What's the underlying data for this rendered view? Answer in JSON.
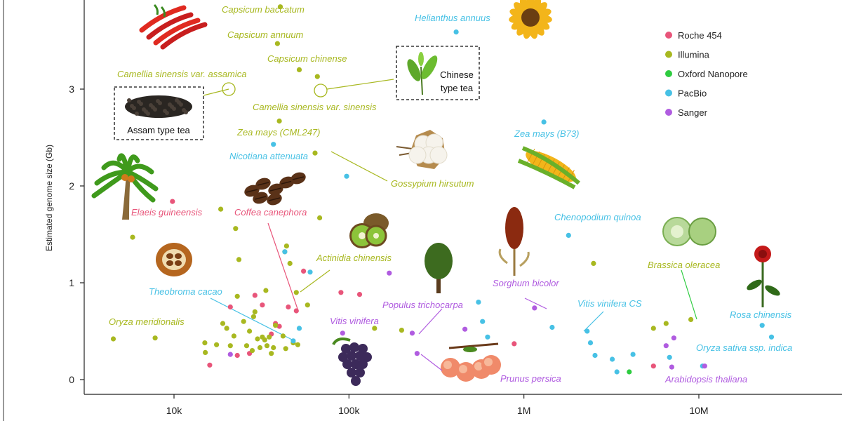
{
  "chart_data": {
    "type": "scatter",
    "title": "",
    "xlabel": "",
    "ylabel": "Estimated genome size (Gb)",
    "x_scale": "log",
    "xlim": [
      3000,
      40000000
    ],
    "ylim": [
      -0.2,
      3.9
    ],
    "x_ticks": [
      {
        "value": 10000,
        "label": "10k"
      },
      {
        "value": 100000,
        "label": "100k"
      },
      {
        "value": 1000000,
        "label": "1M"
      },
      {
        "value": 10000000,
        "label": "10M"
      }
    ],
    "y_ticks": [
      {
        "value": 0,
        "label": "0"
      },
      {
        "value": 1,
        "label": "1"
      },
      {
        "value": 2,
        "label": "2"
      },
      {
        "value": 3,
        "label": "3"
      }
    ],
    "legend_position": "top-right",
    "series": [
      {
        "name": "Roche 454",
        "color": "#e8557a",
        "points": [
          [
            9800,
            1.84
          ],
          [
            16000,
            0.15
          ],
          [
            21000,
            0.75
          ],
          [
            23000,
            0.25
          ],
          [
            27000,
            0.27
          ],
          [
            29000,
            0.87
          ],
          [
            32000,
            0.77
          ],
          [
            36000,
            0.47
          ],
          [
            38000,
            0.58
          ],
          [
            40000,
            0.55
          ],
          [
            45000,
            0.75
          ],
          [
            50000,
            0.71
          ],
          [
            55000,
            1.12
          ],
          [
            90000,
            0.9
          ],
          [
            115000,
            0.88
          ],
          [
            880000,
            0.37
          ],
          [
            5500000,
            0.14
          ]
        ]
      },
      {
        "name": "Illumina",
        "color": "#a8b820",
        "points": [
          [
            4500,
            0.42
          ],
          [
            5800,
            1.47
          ],
          [
            7800,
            0.43
          ],
          [
            15000,
            0.38
          ],
          [
            15100,
            0.28
          ],
          [
            17500,
            0.36
          ],
          [
            18500,
            1.76
          ],
          [
            19000,
            0.58
          ],
          [
            20000,
            0.53
          ],
          [
            21000,
            0.35
          ],
          [
            22000,
            0.45
          ],
          [
            23000,
            0.86
          ],
          [
            23500,
            1.24
          ],
          [
            22500,
            1.56
          ],
          [
            25000,
            0.6
          ],
          [
            26000,
            0.35
          ],
          [
            27000,
            0.5
          ],
          [
            28000,
            0.3
          ],
          [
            28500,
            0.65
          ],
          [
            29000,
            0.7
          ],
          [
            30000,
            0.42
          ],
          [
            31000,
            0.33
          ],
          [
            32000,
            0.44
          ],
          [
            33000,
            0.41
          ],
          [
            33500,
            0.92
          ],
          [
            34000,
            0.35
          ],
          [
            35000,
            0.44
          ],
          [
            36000,
            0.27
          ],
          [
            37000,
            0.33
          ],
          [
            38000,
            0.56
          ],
          [
            39000,
            3.47
          ],
          [
            40000,
            2.67
          ],
          [
            40500,
            3.85
          ],
          [
            42000,
            0.45
          ],
          [
            43000,
            1.32
          ],
          [
            43500,
            0.32
          ],
          [
            44000,
            1.38
          ],
          [
            46000,
            1.2
          ],
          [
            48000,
            0.38
          ],
          [
            50000,
            0.9
          ],
          [
            51000,
            0.36
          ],
          [
            52000,
            3.2
          ],
          [
            58000,
            0.77
          ],
          [
            64000,
            2.34
          ],
          [
            66000,
            3.13
          ],
          [
            68000,
            1.67
          ],
          [
            140000,
            0.53
          ],
          [
            200000,
            0.51
          ],
          [
            2500000,
            1.2
          ],
          [
            5500000,
            0.53
          ],
          [
            6500000,
            0.58
          ],
          [
            9000000,
            0.62
          ]
        ]
      },
      {
        "name": "Oxford Nanopore",
        "color": "#2ecc40",
        "points": [
          [
            4000000,
            0.08
          ]
        ]
      },
      {
        "name": "PacBio",
        "color": "#47c1e5",
        "points": [
          [
            37000,
            2.43
          ],
          [
            43000,
            1.32
          ],
          [
            48000,
            0.4
          ],
          [
            52000,
            0.53
          ],
          [
            60000,
            1.11
          ],
          [
            97000,
            2.1
          ],
          [
            550000,
            0.8
          ],
          [
            580000,
            0.6
          ],
          [
            620000,
            0.44
          ],
          [
            410000,
            3.59
          ],
          [
            1300000,
            2.66
          ],
          [
            1450000,
            0.54
          ],
          [
            1800000,
            1.49
          ],
          [
            2300000,
            0.5
          ],
          [
            2400000,
            0.38
          ],
          [
            2550000,
            0.25
          ],
          [
            3200000,
            0.21
          ],
          [
            3400000,
            0.08
          ],
          [
            4200000,
            0.26
          ],
          [
            6800000,
            0.23
          ],
          [
            10500000,
            0.14
          ],
          [
            23000000,
            0.56
          ],
          [
            26000000,
            0.44
          ]
        ]
      },
      {
        "name": "Sanger",
        "color": "#b05ce0",
        "points": [
          [
            21000,
            0.26
          ],
          [
            92000,
            0.48
          ],
          [
            170000,
            1.1
          ],
          [
            230000,
            0.48
          ],
          [
            245000,
            0.27
          ],
          [
            460000,
            0.52
          ],
          [
            1150000,
            0.74
          ],
          [
            6500000,
            0.35
          ],
          [
            7200000,
            0.43
          ],
          [
            7000000,
            0.13
          ],
          [
            10800000,
            0.14
          ]
        ]
      }
    ],
    "annotations": [
      {
        "text": "Capsicum baccatum",
        "color": "#a8b820"
      },
      {
        "text": "Capsicum annuum",
        "color": "#a8b820"
      },
      {
        "text": "Capsicum chinense",
        "color": "#a8b820"
      },
      {
        "text": "Camellia sinensis var. assamica",
        "color": "#a8b820"
      },
      {
        "text": "Camellia sinensis var. sinensis",
        "color": "#a8b820"
      },
      {
        "text": "Zea mays (CML247)",
        "color": "#a8b820"
      },
      {
        "text": "Nicotiana attenuata",
        "color": "#47c1e5"
      },
      {
        "text": "Gossypium hirsutum",
        "color": "#a8b820"
      },
      {
        "text": "Helianthus annuus",
        "color": "#47c1e5"
      },
      {
        "text": "Zea mays (B73)",
        "color": "#47c1e5"
      },
      {
        "text": "Elaeis guineensis",
        "color": "#e8557a"
      },
      {
        "text": "Coffea canephora",
        "color": "#e8557a"
      },
      {
        "text": "Actinidia chinensis",
        "color": "#a8b820"
      },
      {
        "text": "Chenopodium quinoa",
        "color": "#47c1e5"
      },
      {
        "text": "Brassica oleracea",
        "color": "#a8b820"
      },
      {
        "text": "Theobroma cacao",
        "color": "#47c1e5"
      },
      {
        "text": "Oryza meridionalis",
        "color": "#a8b820"
      },
      {
        "text": "Vitis vinifera",
        "color": "#b05ce0"
      },
      {
        "text": "Populus trichocarpa",
        "color": "#b05ce0"
      },
      {
        "text": "Sorghum bicolor",
        "color": "#b05ce0"
      },
      {
        "text": "Vitis vinifera CS",
        "color": "#47c1e5"
      },
      {
        "text": "Rosa chinensis",
        "color": "#47c1e5"
      },
      {
        "text": "Oryza sativa ssp. indica",
        "color": "#47c1e5"
      },
      {
        "text": "Prunus persica",
        "color": "#b05ce0"
      },
      {
        "text": "Arabidopsis thaliana",
        "color": "#b05ce0"
      }
    ],
    "boxed_labels": [
      {
        "text": "Assam type tea",
        "icon": "black-tea-leaves-icon"
      },
      {
        "text": "Chinese type tea",
        "icon": "green-tea-sprig-icon"
      }
    ],
    "illustrations": [
      "red-chili-peppers-icon",
      "sunflower-icon",
      "palm-tree-icon",
      "coffee-beans-icon",
      "cotton-boll-icon",
      "corn-cob-icon",
      "kiwi-fruit-icon",
      "cacao-pod-icon",
      "tree-icon",
      "sorghum-head-icon",
      "cabbage-icon",
      "rose-icon",
      "grape-bunch-icon",
      "peach-icon"
    ]
  }
}
